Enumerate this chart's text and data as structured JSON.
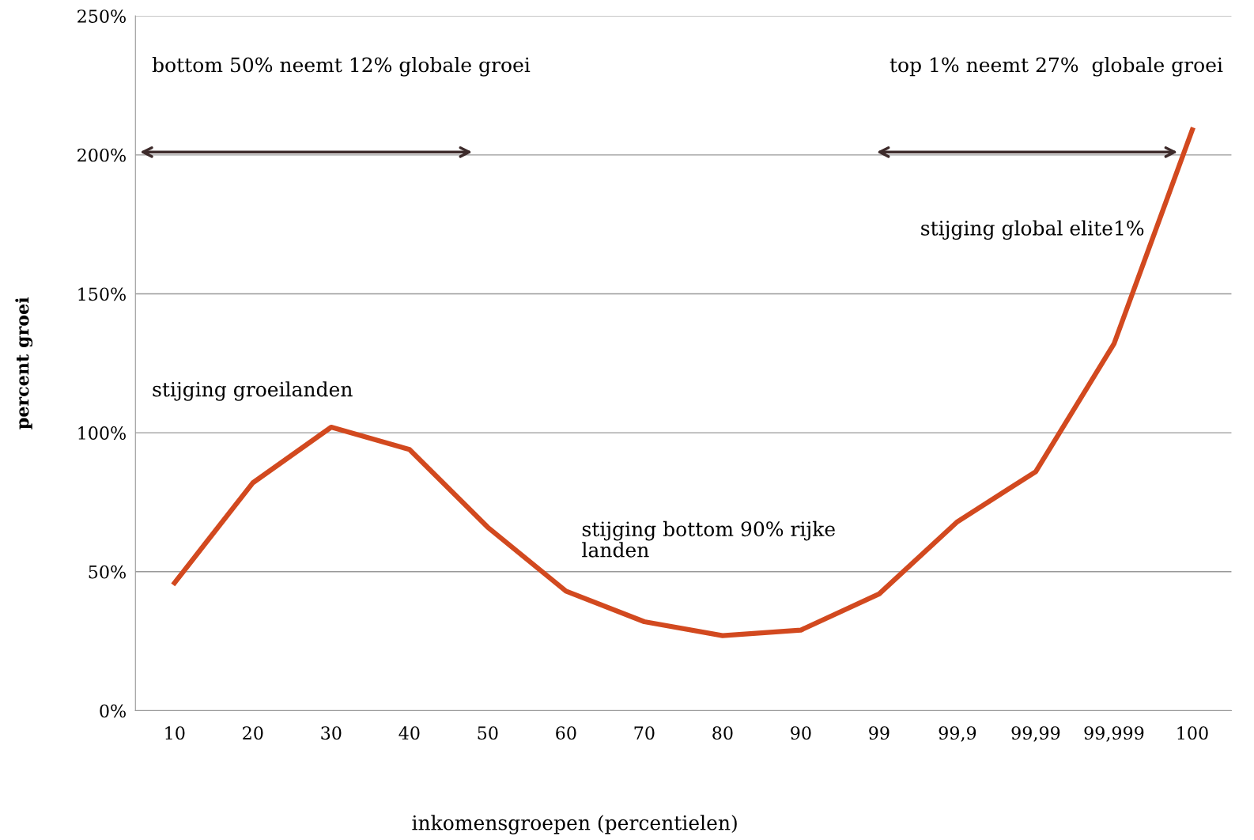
{
  "chart_data": {
    "type": "line",
    "xlabel": "inkomensgroepen (percentielen)",
    "ylabel": "percent groei",
    "categories": [
      "10",
      "20",
      "30",
      "40",
      "50",
      "60",
      "70",
      "80",
      "90",
      "99",
      "99,9",
      "99,99",
      "99,999",
      "100"
    ],
    "series": [
      {
        "color": "#d2491f",
        "values": [
          46,
          82,
          102,
          94,
          66,
          43,
          32,
          27,
          29,
          42,
          68,
          86,
          132,
          209
        ]
      }
    ],
    "ylim": [
      0,
      250
    ],
    "yticks": [
      {
        "value": 0,
        "label": "0%"
      },
      {
        "value": 50,
        "label": "50%"
      },
      {
        "value": 100,
        "label": "100%"
      },
      {
        "value": 150,
        "label": "150%"
      },
      {
        "value": 200,
        "label": "200%"
      },
      {
        "value": 250,
        "label": "250%"
      }
    ],
    "grid": "y",
    "marker": "none",
    "line_style": "solid",
    "legend": false,
    "annotations": [
      "bottom 50% neemt 12% globale groei",
      "top 1% neemt 27%  globale groei",
      "stijging global elite1%",
      "stijging groeilanden",
      "stijging bottom 90% rijke\nlanden"
    ]
  }
}
